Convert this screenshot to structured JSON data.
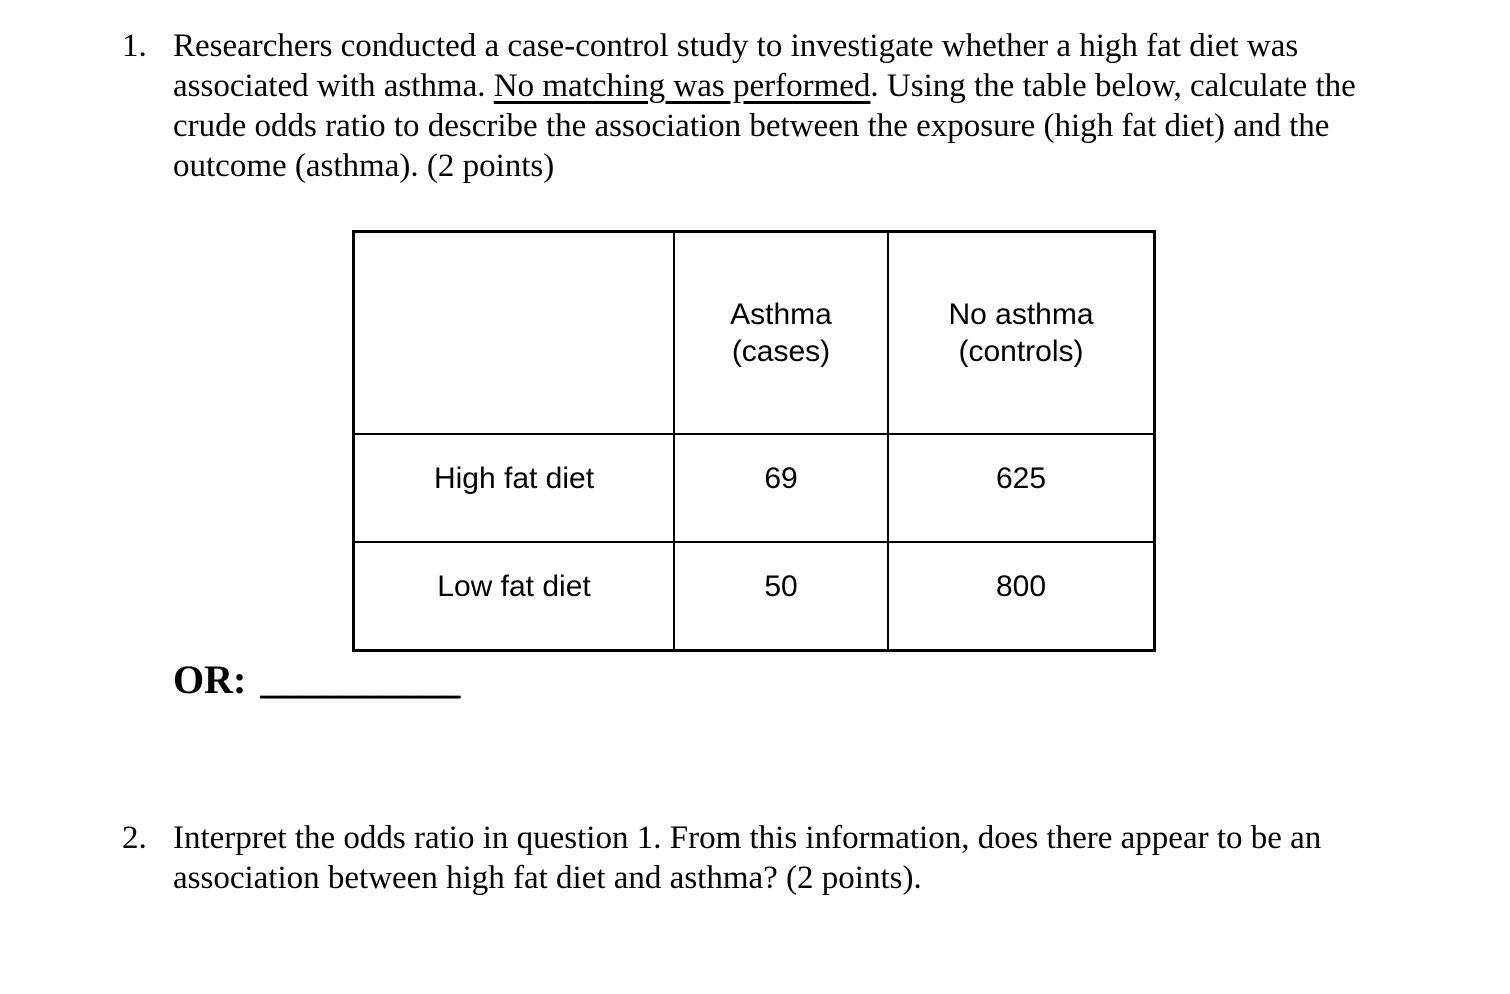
{
  "question1": {
    "number": "1.",
    "text_before": "Researchers conducted a case-control study to investigate whether a high fat diet was associated with asthma. ",
    "text_underlined": "No matching was performed",
    "text_after": ". Using the table below, calculate the crude odds ratio to describe the association between the exposure (high fat diet) and the outcome (asthma). (2 points)"
  },
  "table": {
    "corner": "",
    "col_headers": [
      {
        "line1": "Asthma",
        "line2": "(cases)"
      },
      {
        "line1": "No asthma",
        "line2": "(controls)"
      }
    ],
    "rows": [
      {
        "label": "High fat diet",
        "cases": "69",
        "controls": "625"
      },
      {
        "label": "Low fat diet",
        "cases": "50",
        "controls": "800"
      }
    ]
  },
  "or_line": {
    "label": "OR:",
    "blank": "__________"
  },
  "question2": {
    "number": "2.",
    "text": "Interpret the odds ratio in question 1. From this information, does there appear to be an association between high fat diet and asthma? (2 points)."
  }
}
